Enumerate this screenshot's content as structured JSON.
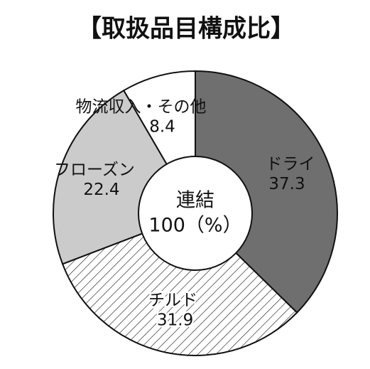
{
  "chart_data": {
    "type": "donut",
    "title": "【取扱品目構成比】",
    "center_label": [
      "連結",
      "100（%）"
    ],
    "categories": [
      "ドライ",
      "チルド",
      "フローズン",
      "物流収入・その他"
    ],
    "values": [
      37.3,
      31.9,
      22.4,
      8.4
    ],
    "colors": [
      "#6f6f6f",
      "#ffffff",
      "#cbcbcb",
      "#ffffff"
    ],
    "hatch": [
      false,
      true,
      false,
      false
    ]
  }
}
